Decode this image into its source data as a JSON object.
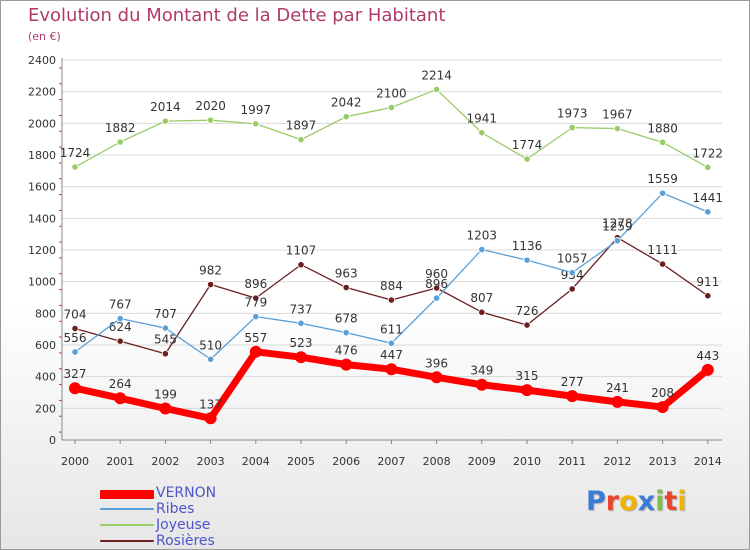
{
  "header": {
    "title": "Evolution du Montant de la Dette par Habitant",
    "subtitle": "(en €)"
  },
  "logo": {
    "text": "Proxiti",
    "colors": [
      "#3a7bd5",
      "#e8452c",
      "#f0b400",
      "#3a7bd5",
      "#7cc242",
      "#e8452c",
      "#f0b400"
    ]
  },
  "chart_data": {
    "type": "line",
    "title": "Evolution du Montant de la Dette par Habitant",
    "subtitle": "(en €)",
    "xlabel": "",
    "ylabel": "",
    "ylim": [
      0,
      2400
    ],
    "yticks": [
      0,
      200,
      400,
      600,
      800,
      1000,
      1200,
      1400,
      1600,
      1800,
      2000,
      2200,
      2400
    ],
    "categories": [
      "2000",
      "2001",
      "2002",
      "2003",
      "2004",
      "2005",
      "2006",
      "2007",
      "2008",
      "2009",
      "2010",
      "2011",
      "2012",
      "2013",
      "2014"
    ],
    "grid": true,
    "legend_position": "bottom-left",
    "series": [
      {
        "name": "Joyeuse",
        "color": "#99cc66",
        "values": [
          1724,
          1882,
          2014,
          2020,
          1997,
          1897,
          2042,
          2100,
          2214,
          1941,
          1774,
          1973,
          1967,
          1880,
          1722
        ]
      },
      {
        "name": "Rosières",
        "color": "#6b1f1f",
        "values": [
          704,
          624,
          545,
          982,
          896,
          1107,
          963,
          884,
          960,
          807,
          726,
          954,
          1278,
          1111,
          911
        ]
      },
      {
        "name": "Ribes",
        "color": "#5aa0d8",
        "values": [
          556,
          767,
          707,
          510,
          779,
          737,
          678,
          611,
          896,
          1203,
          1136,
          1057,
          1259,
          1559,
          1441
        ]
      },
      {
        "name": "VERNON",
        "color": "#ff0000",
        "values": [
          327,
          264,
          199,
          137,
          557,
          523,
          476,
          447,
          396,
          349,
          315,
          277,
          241,
          208,
          443
        ]
      }
    ],
    "legend": [
      "VERNON",
      "Ribes",
      "Joyeuse",
      "Rosières"
    ]
  }
}
